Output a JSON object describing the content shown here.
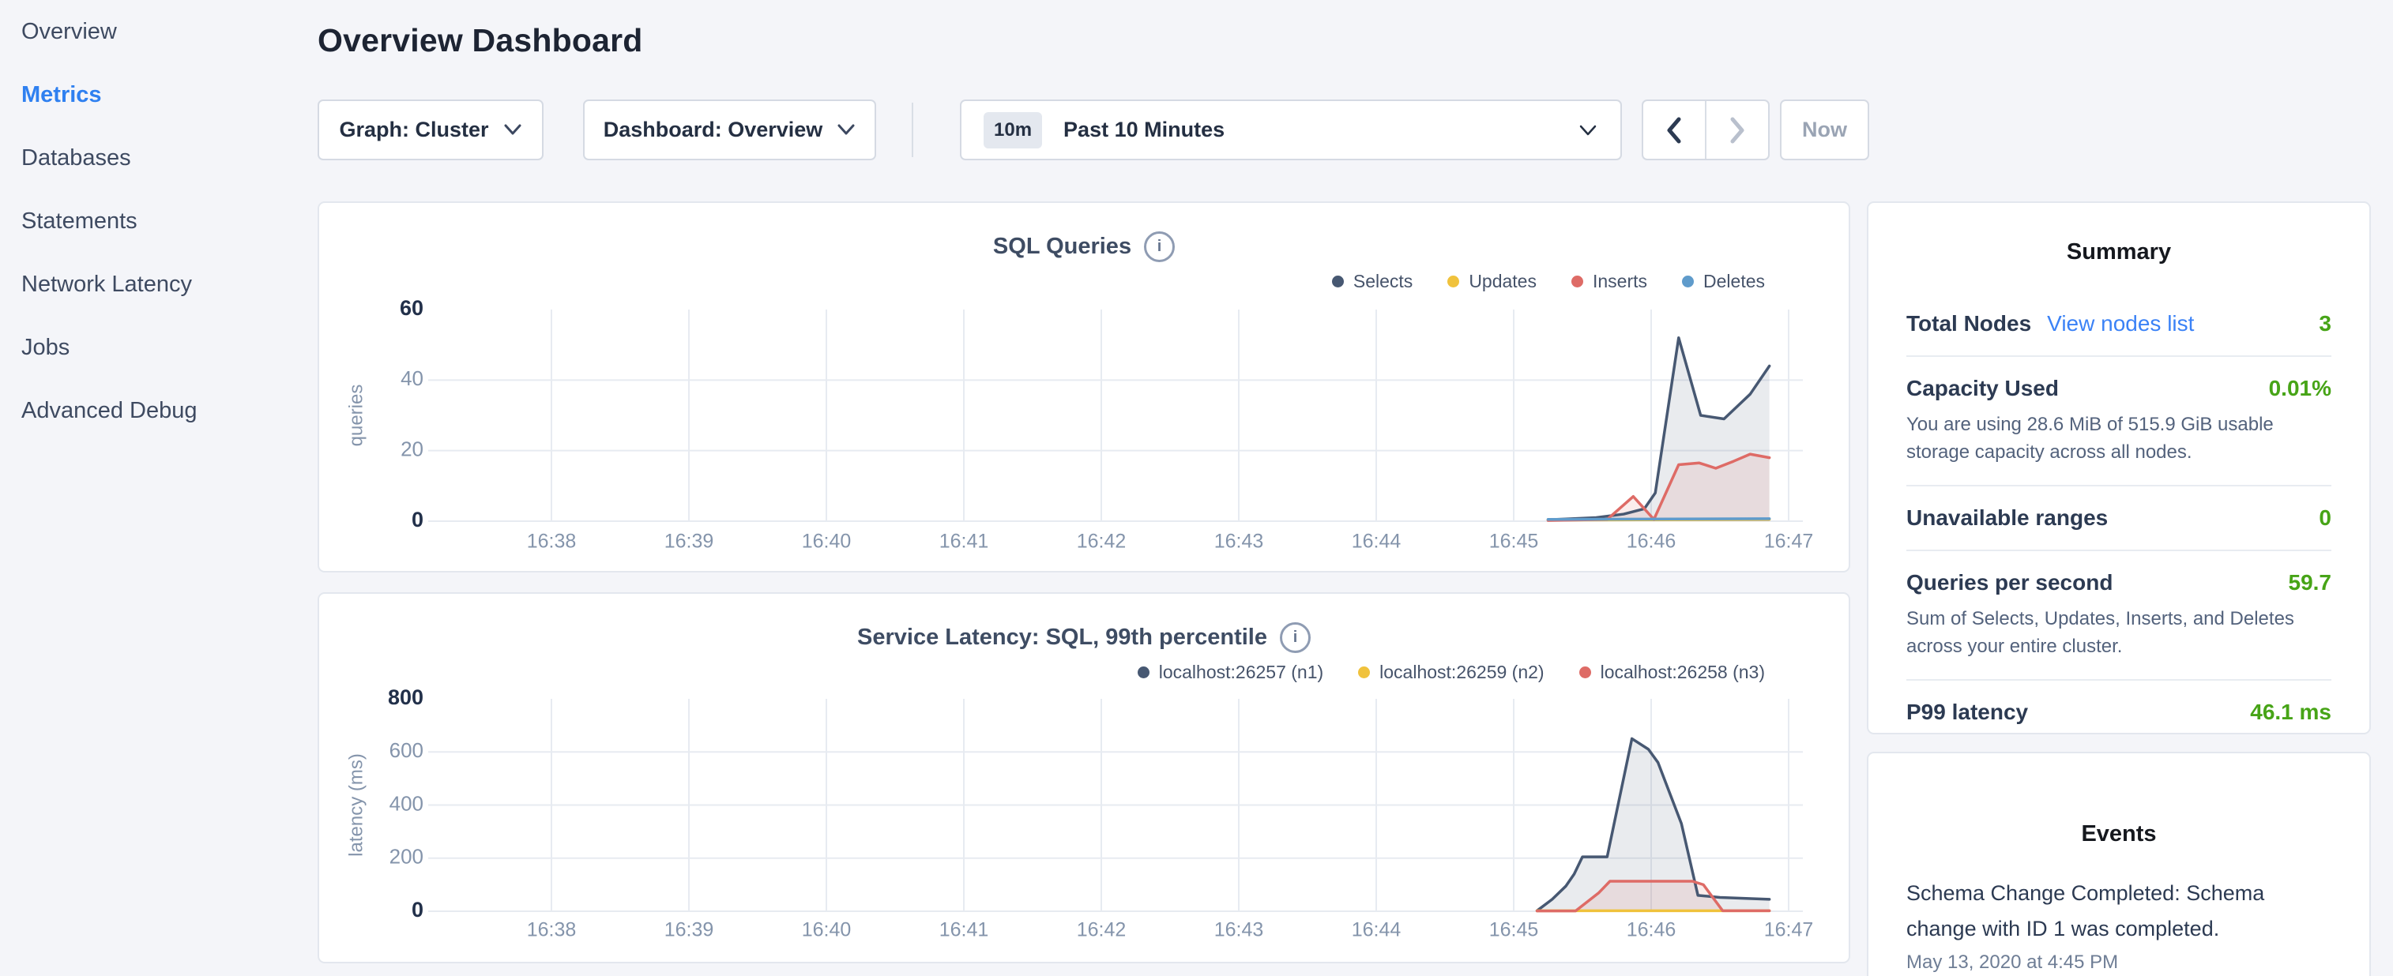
{
  "colors": {
    "accent_blue": "#2f80f0",
    "link_blue": "#3b82f6",
    "green_value": "#47a417",
    "grid": "#e7ebf1",
    "tick_muted": "#8494ab",
    "tick_strong": "#22304a"
  },
  "sidebar": {
    "items": [
      {
        "label": "Overview",
        "active": false
      },
      {
        "label": "Metrics",
        "active": true
      },
      {
        "label": "Databases",
        "active": false
      },
      {
        "label": "Statements",
        "active": false
      },
      {
        "label": "Network Latency",
        "active": false
      },
      {
        "label": "Jobs",
        "active": false
      },
      {
        "label": "Advanced Debug",
        "active": false
      }
    ]
  },
  "header": {
    "title": "Overview Dashboard"
  },
  "toolbar": {
    "graph_dropdown_label": "Graph: Cluster",
    "dashboard_dropdown_label": "Dashboard: Overview",
    "time_badge": "10m",
    "time_label": "Past 10 Minutes",
    "now_label": "Now"
  },
  "summary": {
    "title": "Summary",
    "rows": [
      {
        "label": "Total Nodes",
        "link": "View nodes list",
        "value": "3"
      },
      {
        "label": "Capacity Used",
        "value": "0.01%",
        "description": "You are using 28.6 MiB of 515.9 GiB usable storage capacity across all nodes."
      },
      {
        "label": "Unavailable ranges",
        "value": "0"
      },
      {
        "label": "Queries per second",
        "value": "59.7",
        "description": "Sum of Selects, Updates, Inserts, and Deletes across your entire cluster."
      },
      {
        "label": "P99 latency",
        "value": "46.1 ms"
      }
    ]
  },
  "events": {
    "title": "Events",
    "items": [
      {
        "message": "Schema Change Completed: Schema change with ID 1 was completed.",
        "timestamp": "May 13, 2020 at 4:45 PM"
      }
    ]
  },
  "chart_data": [
    {
      "type": "line",
      "title": "SQL Queries",
      "ylabel": "queries",
      "x_ticks": [
        "16:38",
        "16:39",
        "16:40",
        "16:41",
        "16:42",
        "16:43",
        "16:44",
        "16:45",
        "16:46",
        "16:47"
      ],
      "x_unit_minutes_after_first_tick": true,
      "ylim": [
        0,
        60
      ],
      "y_ticks": [
        0,
        20,
        40,
        60
      ],
      "grid": true,
      "legend_position": "top-right",
      "series": [
        {
          "name": "Selects",
          "color": "#475872",
          "points": [
            [
              7.25,
              0.4
            ],
            [
              7.6,
              1
            ],
            [
              7.8,
              2
            ],
            [
              7.95,
              3.5
            ],
            [
              8.03,
              8
            ],
            [
              8.2,
              52
            ],
            [
              8.36,
              30
            ],
            [
              8.53,
              29
            ],
            [
              8.72,
              36
            ],
            [
              8.86,
              44
            ]
          ]
        },
        {
          "name": "Updates",
          "color": "#f0c23c",
          "points": [
            [
              7.25,
              0.3
            ],
            [
              8.86,
              0.5
            ]
          ]
        },
        {
          "name": "Inserts",
          "color": "#de6b66",
          "points": [
            [
              7.25,
              0.2
            ],
            [
              7.68,
              0.5
            ],
            [
              7.87,
              7
            ],
            [
              8.02,
              0.5
            ],
            [
              8.2,
              16
            ],
            [
              8.35,
              16.5
            ],
            [
              8.47,
              15
            ],
            [
              8.6,
              17
            ],
            [
              8.72,
              19
            ],
            [
              8.86,
              18
            ]
          ]
        },
        {
          "name": "Deletes",
          "color": "#5f9bcb",
          "points": [
            [
              7.25,
              0.5
            ],
            [
              8.86,
              0.7
            ]
          ]
        }
      ]
    },
    {
      "type": "line",
      "title": "Service Latency: SQL, 99th percentile",
      "ylabel": "latency (ms)",
      "x_ticks": [
        "16:38",
        "16:39",
        "16:40",
        "16:41",
        "16:42",
        "16:43",
        "16:44",
        "16:45",
        "16:46",
        "16:47"
      ],
      "x_unit_minutes_after_first_tick": true,
      "ylim": [
        0,
        800
      ],
      "y_ticks": [
        0,
        200,
        400,
        600,
        800
      ],
      "grid": true,
      "legend_position": "top-right",
      "series": [
        {
          "name": "localhost:26257 (n1)",
          "color": "#475872",
          "points": [
            [
              7.17,
              2
            ],
            [
              7.28,
              45
            ],
            [
              7.38,
              95
            ],
            [
              7.44,
              140
            ],
            [
              7.5,
              205
            ],
            [
              7.68,
              205
            ],
            [
              7.86,
              650
            ],
            [
              7.98,
              610
            ],
            [
              8.05,
              560
            ],
            [
              8.22,
              330
            ],
            [
              8.34,
              60
            ],
            [
              8.5,
              52
            ],
            [
              8.86,
              45
            ]
          ]
        },
        {
          "name": "localhost:26259 (n2)",
          "color": "#f0c23c",
          "points": [
            [
              7.17,
              2
            ],
            [
              8.86,
              2
            ]
          ]
        },
        {
          "name": "localhost:26258 (n3)",
          "color": "#de6b66",
          "points": [
            [
              7.17,
              1
            ],
            [
              7.45,
              1
            ],
            [
              7.62,
              70
            ],
            [
              7.7,
              113
            ],
            [
              8.3,
              113
            ],
            [
              8.38,
              100
            ],
            [
              8.52,
              2
            ],
            [
              8.86,
              2
            ]
          ]
        }
      ]
    }
  ]
}
